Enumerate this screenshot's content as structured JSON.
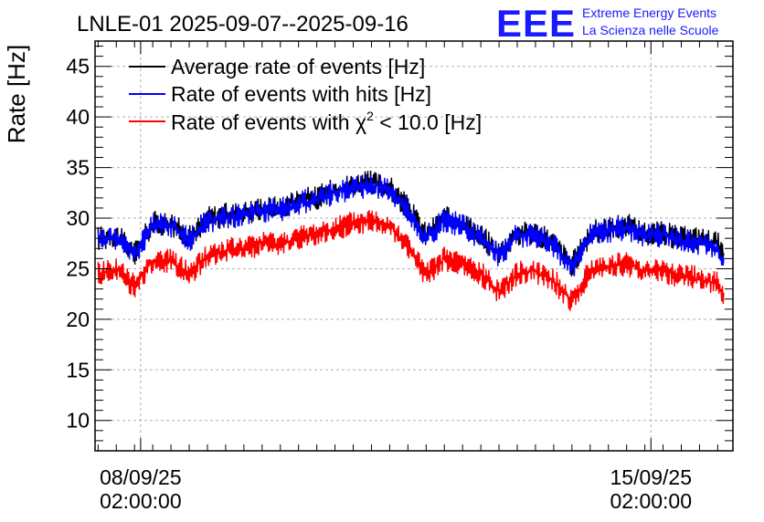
{
  "logo": {
    "letters": "EEE",
    "line1": "Extreme Energy Events",
    "line2": "La Scienza nelle Scuole"
  },
  "chart_data": {
    "type": "line",
    "title": "LNLE-01 2025-09-07--2025-09-16",
    "ylabel": "Rate [Hz]",
    "xlabel": "",
    "xaxis": {
      "type": "time",
      "start": "2025-09-07 11:00",
      "end": "2025-09-16 05:00"
    },
    "ylim": [
      7,
      47.5
    ],
    "yticks": [
      10,
      15,
      20,
      25,
      30,
      35,
      40,
      45
    ],
    "xticks": [
      {
        "at": "2025-09-08 02:00:00",
        "label_date": "08/09/25",
        "label_time": "02:00:00"
      },
      {
        "at": "2025-09-15 02:00:00",
        "label_date": "15/09/25",
        "label_time": "02:00:00"
      }
    ],
    "grid": true,
    "legend_position": "top-left",
    "legend": [
      {
        "text": "Average rate of events [Hz]",
        "color": "#000000"
      },
      {
        "text": "Rate of events with hits [Hz]",
        "color": "#0000ff"
      },
      {
        "text_before": "Rate of events with ",
        "symbol": "χ",
        "superscript": "2",
        "text_after": " < 10.0 [Hz]",
        "color": "#ff0000"
      }
    ],
    "series": [
      {
        "name": "Average rate of events [Hz]",
        "color": "#000000",
        "x": [
          "2025-09-07 12:00",
          "2025-09-07 18:00",
          "2025-09-08 00:00",
          "2025-09-08 06:00",
          "2025-09-08 12:00",
          "2025-09-08 18:00",
          "2025-09-09 00:00",
          "2025-09-09 06:00",
          "2025-09-09 12:00",
          "2025-09-09 18:00",
          "2025-09-10 00:00",
          "2025-09-10 06:00",
          "2025-09-10 12:00",
          "2025-09-10 18:00",
          "2025-09-11 00:00",
          "2025-09-11 06:00",
          "2025-09-11 12:00",
          "2025-09-11 18:00",
          "2025-09-12 00:00",
          "2025-09-12 06:00",
          "2025-09-12 12:00",
          "2025-09-12 18:00",
          "2025-09-13 00:00",
          "2025-09-13 06:00",
          "2025-09-13 12:00",
          "2025-09-13 18:00",
          "2025-09-14 00:00",
          "2025-09-14 06:00",
          "2025-09-14 12:00",
          "2025-09-14 18:00",
          "2025-09-15 00:00",
          "2025-09-15 06:00",
          "2025-09-15 12:00",
          "2025-09-15 18:00",
          "2025-09-16 00:00",
          "2025-09-16 02:00"
        ],
        "y": [
          28.0,
          28.3,
          26.5,
          29.5,
          29.5,
          28.0,
          30.0,
          30.3,
          30.5,
          31.0,
          31.0,
          31.8,
          32.0,
          32.8,
          33.3,
          33.5,
          33.0,
          31.0,
          28.3,
          30.0,
          29.5,
          28.3,
          26.5,
          28.5,
          28.5,
          27.5,
          25.3,
          28.5,
          29.0,
          29.3,
          28.5,
          28.5,
          28.0,
          28.0,
          27.5,
          26.0
        ]
      },
      {
        "name": "Rate of events with hits [Hz]",
        "color": "#0000ff",
        "x": [
          "2025-09-07 12:00",
          "2025-09-07 18:00",
          "2025-09-08 00:00",
          "2025-09-08 06:00",
          "2025-09-08 12:00",
          "2025-09-08 18:00",
          "2025-09-09 00:00",
          "2025-09-09 06:00",
          "2025-09-09 12:00",
          "2025-09-09 18:00",
          "2025-09-10 00:00",
          "2025-09-10 06:00",
          "2025-09-10 12:00",
          "2025-09-10 18:00",
          "2025-09-11 00:00",
          "2025-09-11 06:00",
          "2025-09-11 12:00",
          "2025-09-11 18:00",
          "2025-09-12 00:00",
          "2025-09-12 06:00",
          "2025-09-12 12:00",
          "2025-09-12 18:00",
          "2025-09-13 00:00",
          "2025-09-13 06:00",
          "2025-09-13 12:00",
          "2025-09-13 18:00",
          "2025-09-14 00:00",
          "2025-09-14 06:00",
          "2025-09-14 12:00",
          "2025-09-14 18:00",
          "2025-09-15 00:00",
          "2025-09-15 06:00",
          "2025-09-15 12:00",
          "2025-09-15 18:00",
          "2025-09-16 00:00",
          "2025-09-16 02:00"
        ],
        "y": [
          27.8,
          28.0,
          26.3,
          29.3,
          29.3,
          27.8,
          29.8,
          30.0,
          30.3,
          30.8,
          30.8,
          31.5,
          31.8,
          32.5,
          33.0,
          33.3,
          32.8,
          30.8,
          28.0,
          29.8,
          29.3,
          28.0,
          26.3,
          28.3,
          28.3,
          27.3,
          25.0,
          28.3,
          28.8,
          29.0,
          28.3,
          28.3,
          27.8,
          27.5,
          27.0,
          25.5
        ]
      },
      {
        "name": "Rate of events with χ2 < 10.0 [Hz]",
        "color": "#ff0000",
        "x": [
          "2025-09-07 12:00",
          "2025-09-07 18:00",
          "2025-09-08 00:00",
          "2025-09-08 06:00",
          "2025-09-08 12:00",
          "2025-09-08 18:00",
          "2025-09-09 00:00",
          "2025-09-09 06:00",
          "2025-09-09 12:00",
          "2025-09-09 18:00",
          "2025-09-10 00:00",
          "2025-09-10 06:00",
          "2025-09-10 12:00",
          "2025-09-10 18:00",
          "2025-09-11 00:00",
          "2025-09-11 06:00",
          "2025-09-11 12:00",
          "2025-09-11 18:00",
          "2025-09-12 00:00",
          "2025-09-12 06:00",
          "2025-09-12 12:00",
          "2025-09-12 18:00",
          "2025-09-13 00:00",
          "2025-09-13 06:00",
          "2025-09-13 12:00",
          "2025-09-13 18:00",
          "2025-09-14 00:00",
          "2025-09-14 06:00",
          "2025-09-14 12:00",
          "2025-09-14 18:00",
          "2025-09-15 00:00",
          "2025-09-15 06:00",
          "2025-09-15 12:00",
          "2025-09-15 18:00",
          "2025-09-16 00:00",
          "2025-09-16 02:00"
        ],
        "y": [
          24.5,
          25.0,
          23.3,
          25.8,
          25.8,
          24.5,
          26.3,
          26.8,
          27.0,
          27.5,
          27.5,
          28.0,
          28.5,
          29.0,
          29.5,
          29.8,
          29.3,
          27.3,
          24.3,
          26.0,
          25.5,
          24.5,
          22.8,
          24.5,
          24.8,
          23.8,
          21.8,
          24.8,
          25.3,
          25.5,
          24.8,
          24.8,
          24.3,
          24.0,
          23.5,
          22.0
        ]
      }
    ]
  }
}
